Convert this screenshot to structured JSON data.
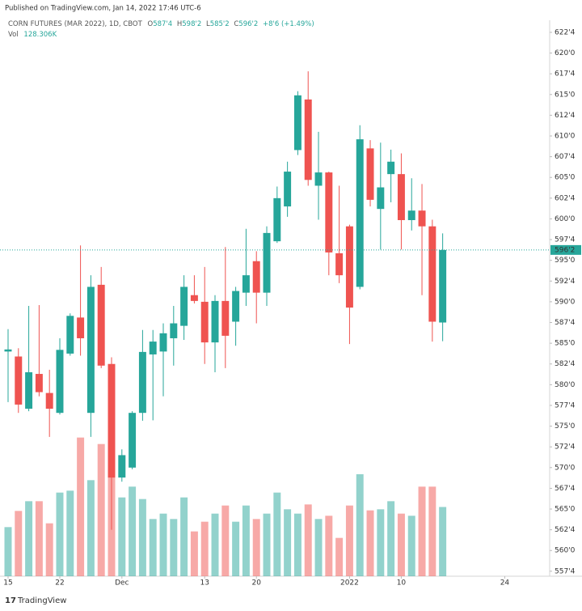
{
  "published": "Published on TradingView.com, Jan 14, 2022 17:46 UTC-6",
  "footer": "TradingView",
  "legend": {
    "symbol": "CORN FUTURES (MAR 2022), 1D, CBOT",
    "open_prefix": "O",
    "open": "587'4",
    "high_prefix": "H",
    "high": "598'2",
    "low_prefix": "L",
    "low": "585'2",
    "close_prefix": "C",
    "close": "596'2",
    "change": "+8'6 (+1.49%)",
    "vol_prefix": "Vol",
    "vol": "128.306K"
  },
  "chart_data": {
    "type": "candlestick",
    "up_color": "#26a69a",
    "down_color": "#ef5350",
    "open": [
      584.0,
      583.4,
      577.1,
      581.3,
      579.0,
      576.6,
      583.75,
      588.1,
      576.6,
      592.05,
      582.5,
      568.8,
      570.0,
      576.6,
      583.65,
      584.0,
      585.6,
      587.1,
      590.8,
      590.0,
      585.1,
      590.1,
      587.6,
      591.1,
      594.9,
      591.1,
      597.3,
      601.5,
      608.3,
      614.4,
      604.0,
      605.6,
      595.85,
      599.1,
      591.8,
      608.5,
      601.2,
      605.4,
      605.4,
      599.85,
      601.0,
      599.1,
      587.5
    ],
    "high": [
      586.7,
      584.4,
      589.5,
      589.6,
      581.8,
      585.6,
      588.6,
      596.8,
      593.2,
      594.2,
      583.3,
      572.2,
      576.8,
      586.6,
      586.6,
      587.4,
      589.5,
      593.2,
      593.2,
      594.2,
      590.8,
      596.6,
      591.8,
      598.8,
      596.1,
      599.1,
      603.9,
      606.9,
      615.4,
      617.8,
      610.5,
      605.7,
      604.0,
      599.3,
      611.3,
      609.5,
      609.2,
      608.35,
      607.9,
      604.9,
      604.2,
      599.9,
      598.25
    ],
    "low": [
      577.9,
      576.6,
      576.8,
      578.6,
      573.7,
      576.4,
      583.5,
      583.5,
      573.7,
      582.0,
      562.5,
      568.3,
      569.8,
      575.65,
      575.7,
      578.6,
      582.3,
      585.4,
      589.8,
      582.5,
      581.5,
      582.0,
      584.7,
      589.5,
      587.4,
      589.5,
      597.1,
      600.25,
      607.7,
      604.0,
      599.9,
      593.2,
      592.25,
      584.9,
      591.5,
      601.5,
      596.3,
      602.0,
      596.3,
      598.6,
      590.8,
      585.2,
      585.25
    ],
    "close": [
      584.25,
      577.6,
      581.5,
      579.1,
      577.1,
      584.2,
      588.3,
      585.6,
      591.8,
      582.3,
      568.8,
      571.5,
      576.6,
      583.95,
      585.2,
      586.2,
      587.4,
      591.8,
      590.1,
      585.1,
      590.1,
      585.9,
      591.3,
      593.2,
      591.1,
      598.3,
      602.5,
      605.7,
      614.9,
      604.7,
      605.6,
      595.95,
      593.2,
      589.3,
      609.6,
      602.3,
      603.8,
      606.9,
      599.85,
      601.0,
      599.1,
      587.6,
      596.25
    ],
    "volume": [
      91000,
      121000,
      139000,
      139000,
      98000,
      155000,
      158500,
      257000,
      178000,
      245000,
      199000,
      146000,
      166000,
      143000,
      106000,
      116000,
      106000,
      146000,
      83000,
      101000,
      116000,
      131000,
      101000,
      131000,
      106000,
      116000,
      155000,
      124000,
      116000,
      133000,
      106000,
      112000,
      71000,
      131000,
      189000,
      122000,
      124000,
      139000,
      116000,
      112000,
      166000,
      166000,
      128306
    ],
    "volume_lim": [
      0,
      300000
    ],
    "xlim": [
      -0.78,
      52.34
    ],
    "xticks": [
      {
        "value": 0,
        "label": "15"
      },
      {
        "value": 5,
        "label": "22"
      },
      {
        "value": 11,
        "label": "Dec"
      },
      {
        "value": 19,
        "label": "13"
      },
      {
        "value": 24,
        "label": "20"
      },
      {
        "value": 33,
        "label": "2022"
      },
      {
        "value": 38,
        "label": "10"
      },
      {
        "value": 48,
        "label": "24"
      }
    ],
    "ylim": [
      556.9,
      623.96
    ],
    "yticks": [
      {
        "value": 622.5,
        "label": "622'4"
      },
      {
        "value": 620,
        "label": "620'0"
      },
      {
        "value": 617.5,
        "label": "617'4"
      },
      {
        "value": 615,
        "label": "615'0"
      },
      {
        "value": 612.5,
        "label": "612'4"
      },
      {
        "value": 610,
        "label": "610'0"
      },
      {
        "value": 607.5,
        "label": "607'4"
      },
      {
        "value": 605,
        "label": "605'0"
      },
      {
        "value": 602.5,
        "label": "602'4"
      },
      {
        "value": 600,
        "label": "600'0"
      },
      {
        "value": 597.5,
        "label": "597'4"
      },
      {
        "value": 595,
        "label": "595'0"
      },
      {
        "value": 592.5,
        "label": "592'4"
      },
      {
        "value": 590,
        "label": "590'0"
      },
      {
        "value": 587.5,
        "label": "587'4"
      },
      {
        "value": 585,
        "label": "585'0"
      },
      {
        "value": 582.5,
        "label": "582'4"
      },
      {
        "value": 580,
        "label": "580'0"
      },
      {
        "value": 577.5,
        "label": "577'4"
      },
      {
        "value": 575,
        "label": "575'0"
      },
      {
        "value": 572.5,
        "label": "572'4"
      },
      {
        "value": 570,
        "label": "570'0"
      },
      {
        "value": 567.5,
        "label": "567'4"
      },
      {
        "value": 565,
        "label": "565'0"
      },
      {
        "value": 562.5,
        "label": "562'4"
      },
      {
        "value": 560,
        "label": "560'0"
      },
      {
        "value": 557.5,
        "label": "557'4"
      }
    ],
    "last_price": {
      "value": 596.25,
      "label": "596'2"
    },
    "grid": false
  }
}
